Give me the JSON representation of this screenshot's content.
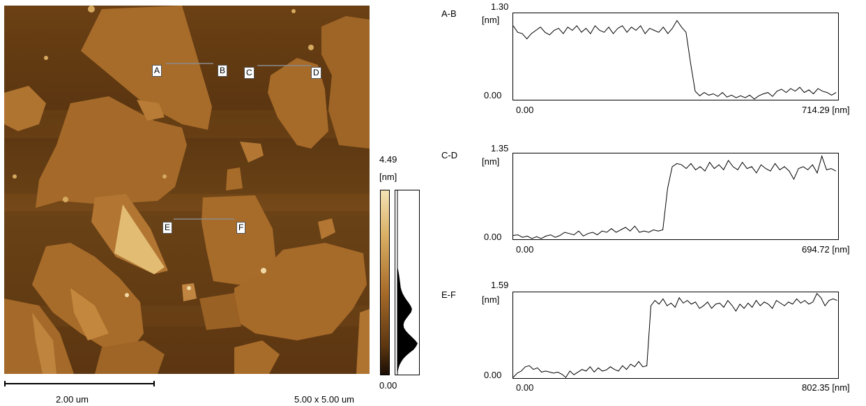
{
  "afm_image": {
    "scale_bar_label": "2.00 um",
    "scan_size_label": "5.00 x 5.00 um",
    "markers": [
      "A",
      "B",
      "C",
      "D",
      "E",
      "F"
    ],
    "colors": {
      "dark": "#5a3510",
      "mid": "#9a6124",
      "light": "#d6a95f",
      "highlight": "#f0d9a6"
    }
  },
  "colorbar": {
    "max_label": "4.49",
    "unit_label": "[nm]",
    "min_label": "0.00",
    "histogram": [
      0,
      0,
      0,
      0,
      0,
      0,
      0,
      0,
      0,
      0,
      0,
      0,
      0,
      0,
      0,
      0,
      0,
      0,
      0,
      0,
      0,
      0,
      0,
      0,
      0,
      0.02,
      0.05,
      0.08,
      0.1,
      0.12,
      0.14,
      0.16,
      0.2,
      0.26,
      0.34,
      0.44,
      0.56,
      0.66,
      0.72,
      0.68,
      0.56,
      0.44,
      0.34,
      0.3,
      0.32,
      0.42,
      0.56,
      0.72,
      0.88,
      1.0,
      0.92,
      0.8,
      0.6,
      0.42,
      0.28,
      0.18,
      0.1,
      0.05,
      0.02,
      0
    ]
  },
  "chart_data": [
    {
      "type": "line",
      "title": "A-B",
      "ylabel": "[nm]",
      "xunit": "[nm]",
      "ylim": [
        0.0,
        1.3
      ],
      "xlim": [
        0.0,
        714.29
      ],
      "ytick_labels": [
        "1.30",
        "0.00"
      ],
      "xtick_labels": [
        "0.00",
        "714.29"
      ],
      "x": [
        0,
        10,
        20,
        30,
        40,
        50,
        60,
        70,
        80,
        90,
        100,
        110,
        120,
        130,
        140,
        150,
        160,
        170,
        180,
        190,
        200,
        210,
        220,
        230,
        240,
        250,
        260,
        270,
        280,
        290,
        300,
        310,
        320,
        330,
        340,
        350,
        360,
        370,
        380,
        390,
        400,
        410,
        420,
        430,
        440,
        450,
        460,
        470,
        480,
        490,
        500,
        510,
        520,
        530,
        540,
        550,
        560,
        570,
        580,
        590,
        600,
        610,
        620,
        630,
        640,
        650,
        660,
        670,
        680,
        690,
        700,
        710
      ],
      "values": [
        1.12,
        1.02,
        1.0,
        0.92,
        1.0,
        1.05,
        1.1,
        1.02,
        0.98,
        1.05,
        1.08,
        1.0,
        1.1,
        1.05,
        1.12,
        1.02,
        1.08,
        1.0,
        1.12,
        1.05,
        1.02,
        1.1,
        1.0,
        1.08,
        1.12,
        1.02,
        1.1,
        1.05,
        1.12,
        1.0,
        1.08,
        1.05,
        1.02,
        1.1,
        1.0,
        1.08,
        1.2,
        1.1,
        1.02,
        0.55,
        0.12,
        0.05,
        0.1,
        0.06,
        0.08,
        0.04,
        0.1,
        0.03,
        0.06,
        0.02,
        0.05,
        0.02,
        0.06,
        0.0,
        0.05,
        0.08,
        0.1,
        0.04,
        0.12,
        0.15,
        0.1,
        0.16,
        0.12,
        0.18,
        0.1,
        0.14,
        0.08,
        0.16,
        0.12,
        0.1,
        0.06,
        0.1
      ]
    },
    {
      "type": "line",
      "title": "C-D",
      "ylabel": "[nm]",
      "xunit": "[nm]",
      "ylim": [
        0.0,
        1.35
      ],
      "xlim": [
        0.0,
        694.72
      ],
      "ytick_labels": [
        "1.35",
        "0.00"
      ],
      "xtick_labels": [
        "0.00",
        "694.72"
      ],
      "x": [
        0,
        10,
        20,
        30,
        40,
        50,
        60,
        70,
        80,
        90,
        100,
        110,
        120,
        130,
        140,
        150,
        160,
        170,
        180,
        190,
        200,
        210,
        220,
        230,
        240,
        250,
        260,
        270,
        280,
        290,
        300,
        310,
        320,
        330,
        340,
        350,
        360,
        370,
        380,
        390,
        400,
        410,
        420,
        430,
        440,
        450,
        460,
        470,
        480,
        490,
        500,
        510,
        520,
        530,
        540,
        550,
        560,
        570,
        580,
        590,
        600,
        610,
        620,
        630,
        640,
        650,
        660,
        670,
        680,
        690
      ],
      "values": [
        0.05,
        0.06,
        0.02,
        0.04,
        0.0,
        0.03,
        0.0,
        0.04,
        0.06,
        0.02,
        0.05,
        0.1,
        0.08,
        0.06,
        0.12,
        0.04,
        0.08,
        0.1,
        0.06,
        0.12,
        0.1,
        0.16,
        0.1,
        0.14,
        0.18,
        0.12,
        0.2,
        0.1,
        0.12,
        0.1,
        0.14,
        0.12,
        0.14,
        0.8,
        1.15,
        1.2,
        1.18,
        1.12,
        1.2,
        1.1,
        1.15,
        1.08,
        1.22,
        1.12,
        1.18,
        1.1,
        1.25,
        1.15,
        1.1,
        1.22,
        1.12,
        1.15,
        1.05,
        1.18,
        1.12,
        1.08,
        1.2,
        1.1,
        1.15,
        1.08,
        0.95,
        1.12,
        1.15,
        1.1,
        1.18,
        1.05,
        1.32,
        1.1,
        1.12,
        1.08
      ]
    },
    {
      "type": "line",
      "title": "E-F",
      "ylabel": "[nm]",
      "xunit": "[nm]",
      "ylim": [
        0.0,
        1.59
      ],
      "xlim": [
        0.0,
        802.35
      ],
      "ytick_labels": [
        "1.59",
        "0.00"
      ],
      "xtick_labels": [
        "0.00",
        "802.35"
      ],
      "x": [
        0,
        10,
        20,
        30,
        40,
        50,
        60,
        70,
        80,
        90,
        100,
        110,
        120,
        130,
        140,
        150,
        160,
        170,
        180,
        190,
        200,
        210,
        220,
        230,
        240,
        250,
        260,
        270,
        280,
        290,
        300,
        310,
        320,
        330,
        340,
        350,
        360,
        370,
        380,
        390,
        400,
        410,
        420,
        430,
        440,
        450,
        460,
        470,
        480,
        490,
        500,
        510,
        520,
        530,
        540,
        550,
        560,
        570,
        580,
        590,
        600,
        610,
        620,
        630,
        640,
        650,
        660,
        670,
        680,
        690,
        700,
        710,
        720,
        730,
        740,
        750,
        760,
        770,
        780,
        790,
        800
      ],
      "values": [
        0.0,
        0.08,
        0.12,
        0.2,
        0.22,
        0.15,
        0.18,
        0.1,
        0.12,
        0.1,
        0.08,
        0.1,
        0.06,
        0.0,
        0.12,
        0.05,
        0.1,
        0.15,
        0.12,
        0.2,
        0.1,
        0.18,
        0.12,
        0.14,
        0.2,
        0.15,
        0.12,
        0.22,
        0.15,
        0.25,
        0.2,
        0.3,
        0.2,
        0.22,
        1.35,
        1.45,
        1.38,
        1.48,
        1.35,
        1.4,
        1.32,
        1.5,
        1.4,
        1.45,
        1.38,
        1.42,
        1.3,
        1.35,
        1.42,
        1.3,
        1.38,
        1.4,
        1.32,
        1.45,
        1.36,
        1.25,
        1.38,
        1.3,
        1.4,
        1.32,
        1.45,
        1.35,
        1.42,
        1.38,
        1.3,
        1.45,
        1.4,
        1.35,
        1.42,
        1.38,
        1.48,
        1.4,
        1.45,
        1.38,
        1.42,
        1.58,
        1.5,
        1.35,
        1.45,
        1.48,
        1.45
      ]
    }
  ]
}
